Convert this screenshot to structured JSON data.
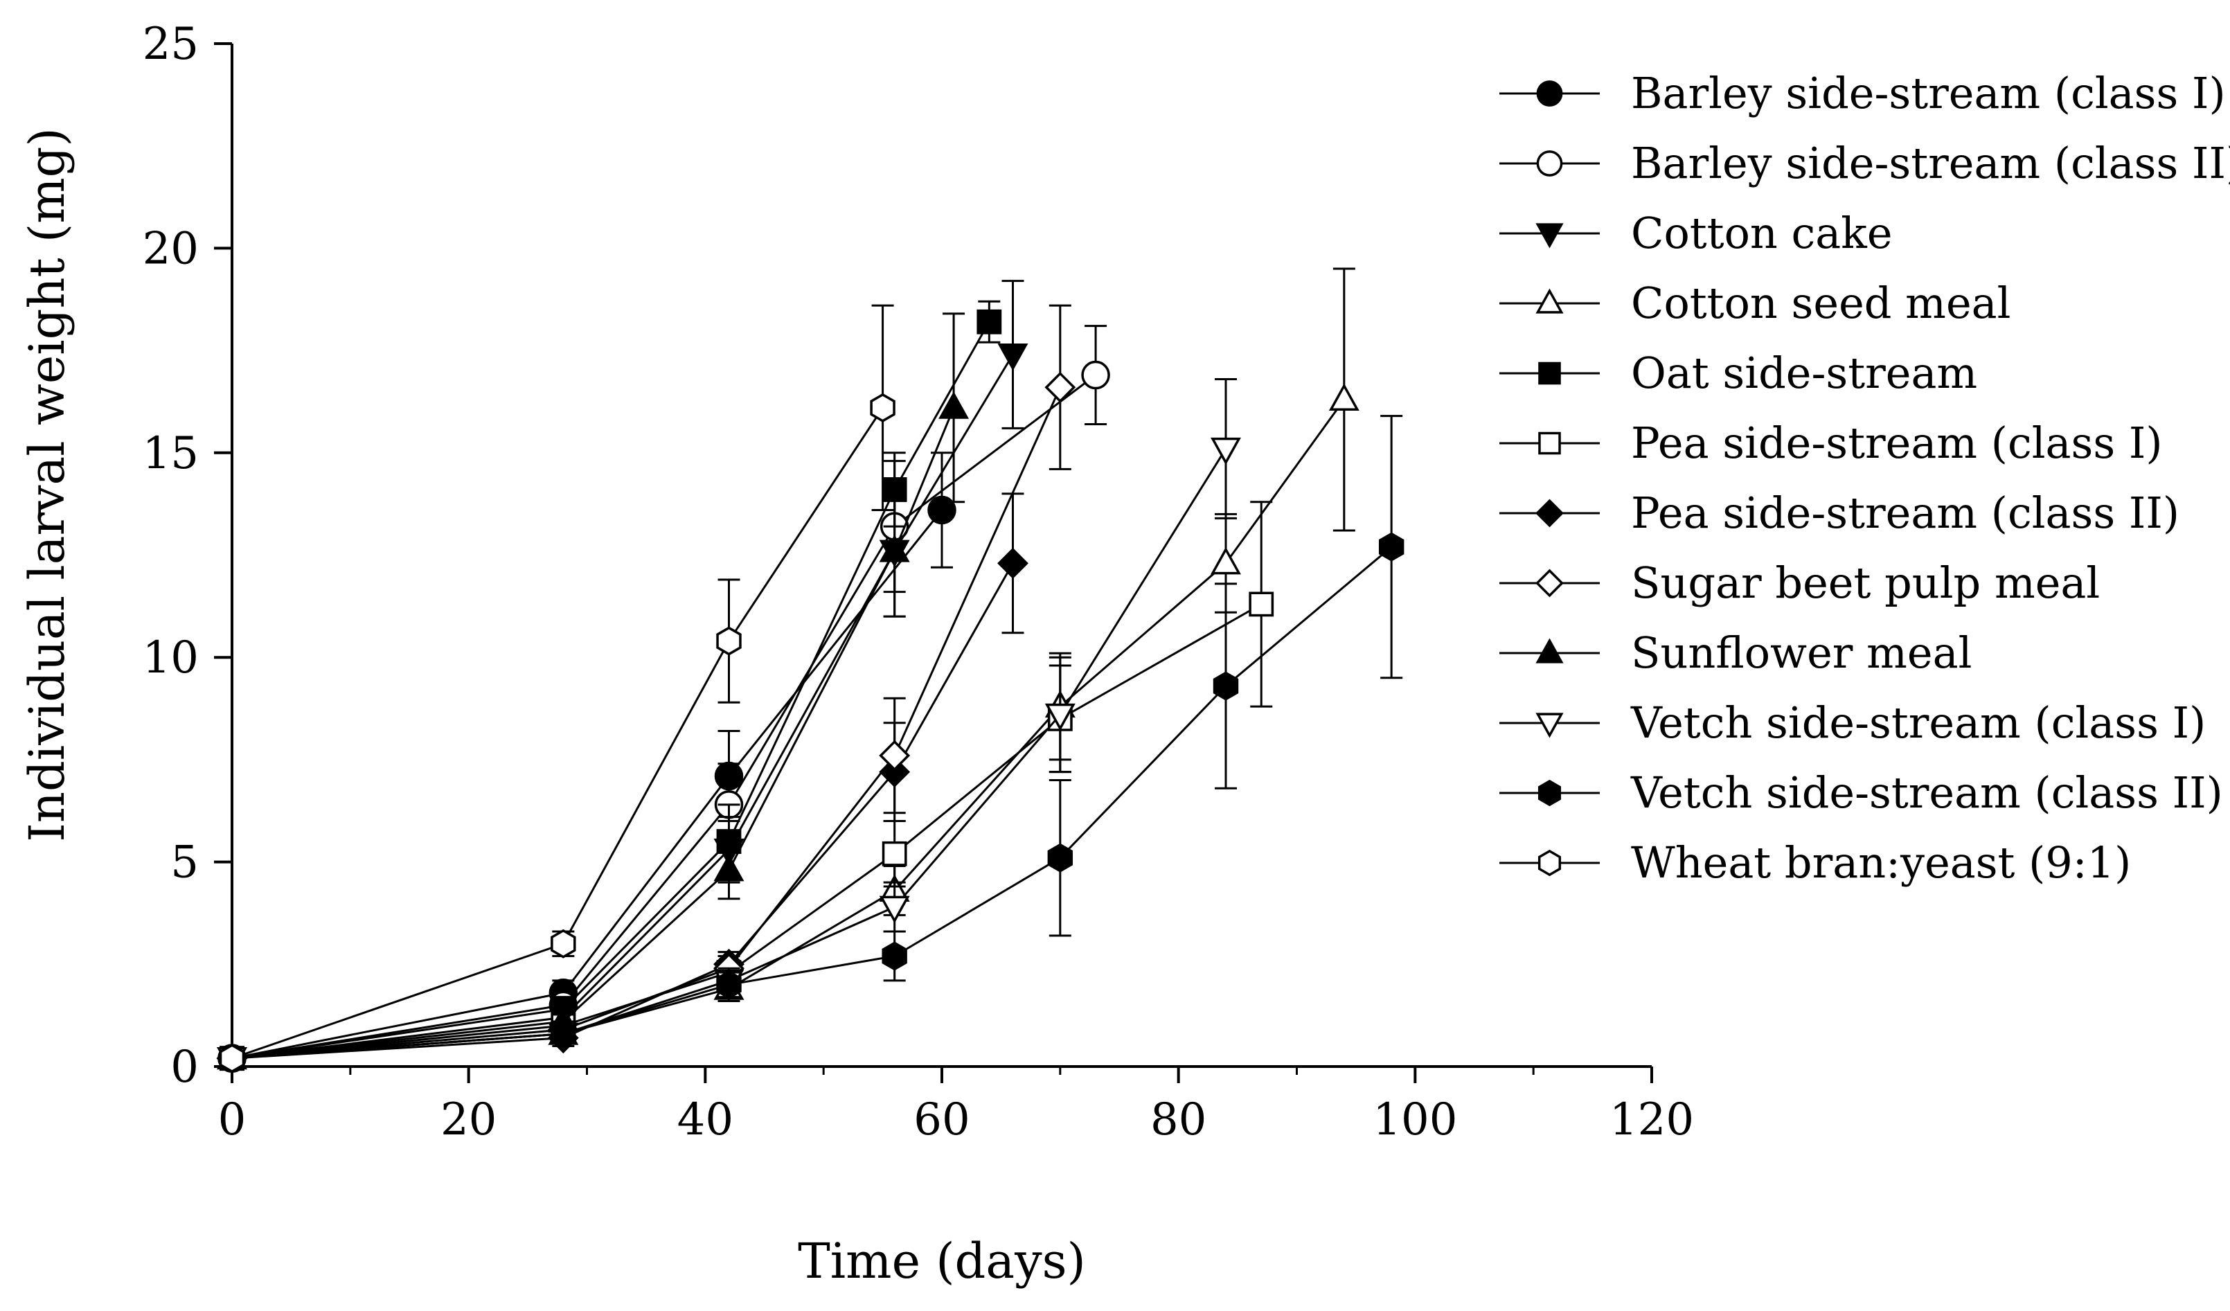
{
  "chart_data": {
    "type": "line",
    "title": "",
    "xlabel": "Time (days)",
    "ylabel": "Individual larval weight (mg)",
    "xlim": [
      0,
      120
    ],
    "ylim": [
      0,
      25
    ],
    "xticks": [
      0,
      20,
      40,
      60,
      80,
      100,
      120
    ],
    "yticks": [
      0,
      5,
      10,
      15,
      20,
      25
    ],
    "grid": false,
    "legend_position": "top-right",
    "series": [
      {
        "name": "Barley side-stream (class I)",
        "marker": "circle",
        "filled": true,
        "x": [
          0,
          28,
          42,
          60
        ],
        "y": [
          0.2,
          1.8,
          7.1,
          13.6
        ],
        "err": [
          0,
          0.3,
          1.1,
          1.4
        ]
      },
      {
        "name": "Barley side-stream (class II)",
        "marker": "circle",
        "filled": false,
        "x": [
          0,
          28,
          42,
          56,
          73
        ],
        "y": [
          0.2,
          1.5,
          6.4,
          13.2,
          16.9
        ],
        "err": [
          0,
          0.3,
          1.0,
          1.6,
          1.2
        ]
      },
      {
        "name": "Cotton cake",
        "marker": "triangle-down",
        "filled": true,
        "x": [
          0,
          28,
          42,
          56,
          66
        ],
        "y": [
          0.2,
          1.2,
          5.3,
          12.6,
          17.4
        ],
        "err": [
          0,
          0.3,
          0.8,
          1.6,
          1.8
        ]
      },
      {
        "name": "Cotton seed meal",
        "marker": "triangle-up",
        "filled": false,
        "x": [
          0,
          28,
          42,
          56,
          70,
          84,
          94
        ],
        "y": [
          0.2,
          0.8,
          1.9,
          4.3,
          8.8,
          12.3,
          16.3
        ],
        "err": [
          0,
          0.2,
          0.3,
          0.6,
          1.3,
          1.2,
          3.2
        ]
      },
      {
        "name": "Oat side-stream",
        "marker": "square",
        "filled": true,
        "x": [
          0,
          28,
          42,
          56,
          64
        ],
        "y": [
          0.2,
          1.4,
          5.5,
          14.1,
          18.2
        ],
        "err": [
          0,
          0.3,
          0.9,
          0.9,
          0.5
        ]
      },
      {
        "name": "Pea side-stream (class I)",
        "marker": "square",
        "filled": false,
        "x": [
          0,
          28,
          42,
          56,
          70,
          87
        ],
        "y": [
          0.2,
          1.0,
          2.3,
          5.2,
          8.5,
          11.3
        ],
        "err": [
          0,
          0.2,
          0.4,
          0.8,
          1.3,
          2.5
        ]
      },
      {
        "name": "Pea side-stream (class II)",
        "marker": "diamond",
        "filled": true,
        "x": [
          0,
          28,
          42,
          56,
          66
        ],
        "y": [
          0.2,
          0.7,
          2.5,
          7.2,
          12.3
        ],
        "err": [
          0,
          0.2,
          0.3,
          1.2,
          1.7
        ]
      },
      {
        "name": "Sugar beet pulp meal",
        "marker": "diamond",
        "filled": false,
        "x": [
          0,
          28,
          42,
          56,
          70
        ],
        "y": [
          0.2,
          0.9,
          2.4,
          7.6,
          16.6
        ],
        "err": [
          0,
          0.2,
          0.3,
          1.4,
          2.0
        ]
      },
      {
        "name": "Sunflower meal",
        "marker": "triangle-up",
        "filled": true,
        "x": [
          0,
          28,
          42,
          56,
          61
        ],
        "y": [
          0.2,
          1.1,
          4.8,
          12.6,
          16.1
        ],
        "err": [
          0,
          0.3,
          0.7,
          1.6,
          2.3
        ]
      },
      {
        "name": "Vetch side-stream (class I)",
        "marker": "triangle-down",
        "filled": false,
        "x": [
          0,
          28,
          42,
          56,
          70,
          84
        ],
        "y": [
          0.2,
          0.8,
          2.1,
          3.9,
          8.6,
          15.1
        ],
        "err": [
          0,
          0.2,
          0.3,
          0.6,
          1.4,
          1.7
        ]
      },
      {
        "name": "Vetch side-stream (class II)",
        "marker": "hexagon",
        "filled": true,
        "x": [
          0,
          28,
          42,
          56,
          70,
          84,
          98
        ],
        "y": [
          0.2,
          0.8,
          2.0,
          2.7,
          5.1,
          9.3,
          12.7
        ],
        "err": [
          0,
          0.2,
          0.3,
          0.6,
          1.9,
          2.5,
          3.2
        ]
      },
      {
        "name": "Wheat bran:yeast (9:1)",
        "marker": "hexagon",
        "filled": false,
        "x": [
          0,
          28,
          42,
          55
        ],
        "y": [
          0.2,
          3.0,
          10.4,
          16.1
        ],
        "err": [
          0,
          0.3,
          1.5,
          2.5
        ]
      }
    ]
  }
}
